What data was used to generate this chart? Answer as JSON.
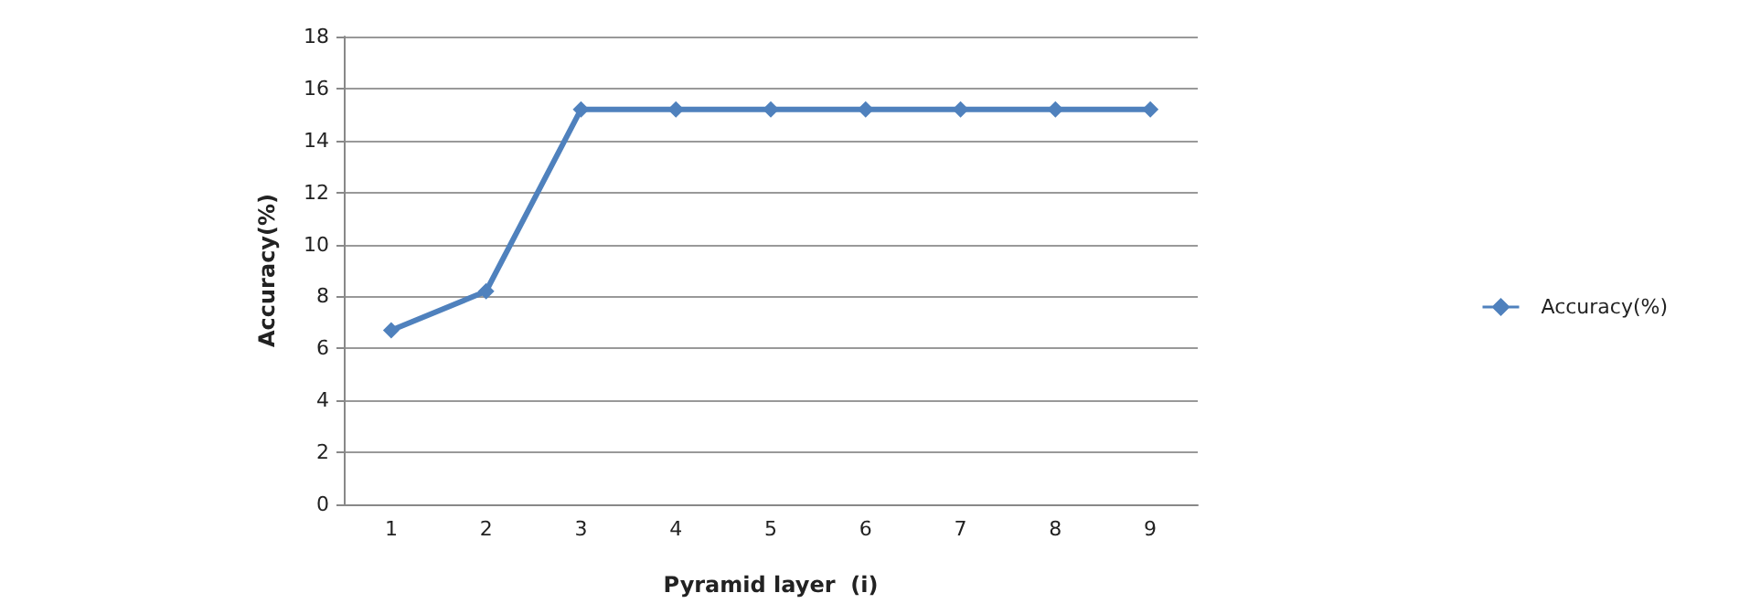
{
  "chart_data": {
    "type": "line",
    "xlabel": "Pyramid layer  (i)",
    "ylabel": "Accuracy(%)",
    "categories": [
      "1",
      "2",
      "3",
      "4",
      "5",
      "6",
      "7",
      "8",
      "9"
    ],
    "series": [
      {
        "name": "Accuracy(%)",
        "color": "#4f81bd",
        "values": [
          6.7,
          8.2,
          15.2,
          15.2,
          15.2,
          15.2,
          15.2,
          15.2,
          15.2
        ]
      }
    ],
    "ylim": [
      0,
      18
    ],
    "yticks": [
      0,
      2,
      4,
      6,
      8,
      10,
      12,
      14,
      16,
      18
    ],
    "grid": "y",
    "legend": "right",
    "marker": "diamond",
    "line_style": "solid"
  }
}
